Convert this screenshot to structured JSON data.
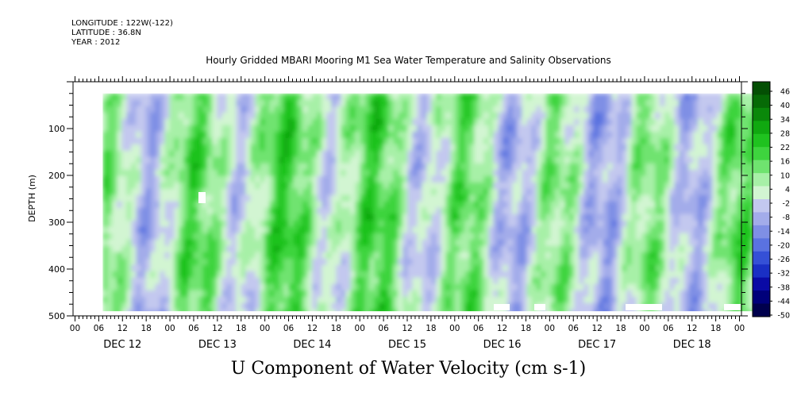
{
  "header": {
    "longitude": "LONGITUDE : 122W(-122)",
    "latitude": "LATITUDE : 36.8N",
    "year": "YEAR : 2012"
  },
  "chart_data": {
    "type": "heatmap",
    "title": "Hourly Gridded MBARI Mooring M1 Sea Water Temperature and Salinity Observations",
    "xlabel": "U Component of Water Velocity (cm s-1)",
    "ylabel": "DEPTH (m)",
    "ylim": [
      500,
      0
    ],
    "y_ticks": [
      100,
      200,
      300,
      400,
      500
    ],
    "x_hour_ticks": [
      "00",
      "06",
      "12",
      "18",
      "00",
      "06",
      "12",
      "18",
      "00",
      "06",
      "12",
      "18",
      "00",
      "06",
      "12",
      "18",
      "00",
      "06",
      "12",
      "18",
      "00",
      "06",
      "12",
      "18",
      "00",
      "06",
      "12",
      "18",
      "00"
    ],
    "x_day_labels": [
      "DEC 12",
      "DEC 13",
      "DEC 14",
      "DEC 15",
      "DEC 16",
      "DEC 17",
      "DEC 18"
    ],
    "data_time_range_hours": [
      7,
      172
    ],
    "data_depth_range_m": [
      25,
      490
    ],
    "colorbar": {
      "labels": [
        46,
        40,
        34,
        28,
        22,
        16,
        10,
        4,
        -2,
        -8,
        -14,
        -20,
        -26,
        -32,
        -38,
        -44,
        -50
      ],
      "range": [
        -50,
        52
      ],
      "colors": [
        "#00004d",
        "#00007a",
        "#0a0aa5",
        "#1a2fc4",
        "#3550d6",
        "#5a72e0",
        "#7f8fe5",
        "#a3acea",
        "#c3c8ef",
        "#d2f5d2",
        "#a7f0a7",
        "#6fe36f",
        "#3ed43e",
        "#1fc21f",
        "#10a810",
        "#0a880a",
        "#066a06",
        "#044f04"
      ]
    },
    "notes": "Depth-time field of U velocity; alternating vertical bands of positive (green) and negative (blue/lavender) values."
  }
}
